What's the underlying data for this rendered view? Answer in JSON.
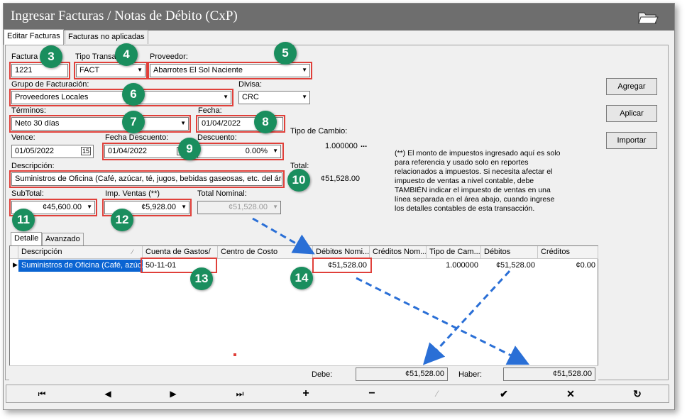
{
  "title": "Ingresar Facturas / Notas de Débito (CxP)",
  "tabs": [
    "Editar Facturas",
    "Facturas no aplicadas"
  ],
  "fields": {
    "factura_label": "Factura",
    "factura_value": "1221",
    "tipo_label": "Tipo Transa",
    "tipo_value": "FACT",
    "proveedor_label": "Proveedor:",
    "proveedor_value": "Abarrotes El Sol Naciente",
    "grupo_label": "Grupo de Facturación:",
    "grupo_value": "Proveedores Locales",
    "divisa_label": "Divisa:",
    "divisa_value": "CRC",
    "terminos_label": "Términos:",
    "terminos_value": "Neto 30 días",
    "fecha_label": "Fecha:",
    "fecha_value": "01/04/2022",
    "tipo_cambio_label": "Tipo de Cambio:",
    "tipo_cambio_value": "1.000000",
    "vence_label": "Vence:",
    "vence_value": "01/05/2022",
    "fecha_desc_label": "Fecha Descuento:",
    "fecha_desc_value": "01/04/2022",
    "descuento_label": "Descuento:",
    "descuento_value": "0.00%",
    "descripcion_label": "Descripción:",
    "descripcion_value": "Suministros de Oficina (Café, azúcar, té, jugos, bebidas gaseosas, etc. del área",
    "total_label": "Total:",
    "total_value": "¢51,528.00",
    "subtotal_label": "SubTotal:",
    "subtotal_value": "¢45,600.00",
    "imp_label": "Imp. Ventas (**)",
    "imp_value": "¢5,928.00",
    "total_nominal_label": "Total Nominal:",
    "total_nominal_value": "¢51,528.00"
  },
  "buttons": {
    "agregar": "Agregar",
    "aplicar": "Aplicar",
    "importar": "Importar"
  },
  "note": "(**) El monto de impuestos ingresado aquí es solo para referencia y usado solo en reportes relacionados a impuestos. Si necesita afectar el impuesto de ventas a nivel contable, debe TAMBIÉN indicar el impuesto de ventas en una línea separada en el área abajo, cuando ingrese los detalles contables de esta transacción.",
  "subtabs": [
    "Detalle",
    "Avanzado"
  ],
  "grid": {
    "headers": [
      "Descripción",
      "Cuenta de Gastos/",
      "Centro de Costo",
      "Débitos Nomi...",
      "Créditos Nom...",
      "Tipo de Cam...",
      "Débitos",
      "Créditos"
    ],
    "row": [
      "Suministros de Oficina (Café, azúc...",
      "50-11-01",
      "",
      "¢51,528.00",
      "",
      "1.000000",
      "¢51,528.00",
      "¢0.00"
    ]
  },
  "totals": {
    "debe_label": "Debe:",
    "debe_value": "¢51,528.00",
    "haber_label": "Haber:",
    "haber_value": "¢51,528.00"
  },
  "badges": [
    "3",
    "4",
    "5",
    "6",
    "7",
    "8",
    "9",
    "10",
    "11",
    "12",
    "13",
    "14"
  ],
  "colors": {
    "titlebar": "#6e6e6e",
    "highlight": "#e0403a",
    "badge": "#1a8e5e",
    "arrow": "#2a6fd6",
    "selected_row": "#0a64d2"
  }
}
